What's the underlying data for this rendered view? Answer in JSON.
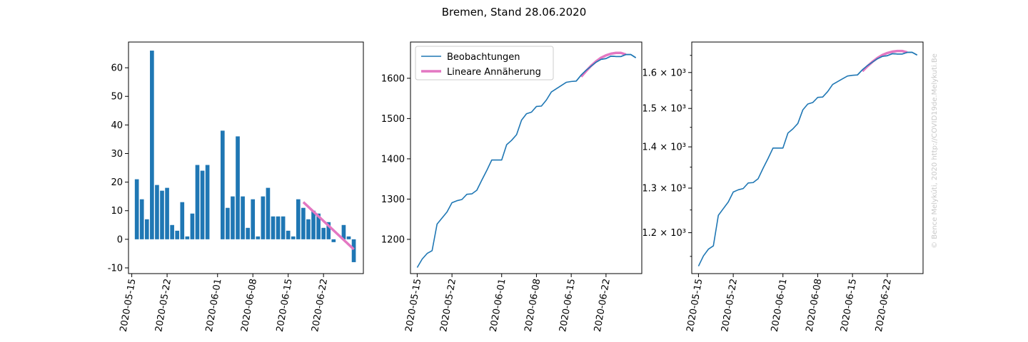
{
  "figure": {
    "title": "Bremen, Stand 28.06.2020",
    "watermark": "© Bence Melykúti, 2020  http://COVID19de.Melykuti.Be"
  },
  "colors": {
    "observed": "#1f77b4",
    "fit": "#e377c2"
  },
  "chart_data": [
    {
      "type": "bar",
      "title": "",
      "xlabel": "",
      "ylabel": "",
      "x_start": "2020-05-16",
      "x_end": "2020-06-28",
      "values": [
        21,
        14,
        7,
        66,
        19,
        17,
        18,
        5,
        3,
        13,
        1,
        9,
        26,
        24,
        26,
        0,
        0,
        38,
        11,
        15,
        36,
        15,
        4,
        14,
        1,
        15,
        18,
        8,
        8,
        8,
        3,
        1,
        14,
        11,
        7,
        10,
        9,
        4,
        6,
        -1,
        0,
        5,
        1,
        -8
      ],
      "ylim": [
        -12,
        69
      ],
      "yticks": [
        -10,
        0,
        10,
        20,
        30,
        40,
        50,
        60
      ],
      "xticks": [
        "2020-05-15",
        "2020-05-22",
        "2020-06-01",
        "2020-06-08",
        "2020-06-15",
        "2020-06-22"
      ],
      "fit": {
        "x": [
          "2020-06-18",
          "2020-06-28"
        ],
        "y": [
          13.0,
          -3.5
        ]
      }
    },
    {
      "type": "line",
      "title": "",
      "xlabel": "",
      "ylabel": "",
      "series": [
        {
          "name": "Beobachtungen",
          "x_start": "2020-05-15",
          "values": [
            1130,
            1151,
            1165,
            1172,
            1238,
            1253,
            1268,
            1291,
            1296,
            1299,
            1312,
            1313,
            1322,
            1347,
            1371,
            1397,
            1397,
            1397,
            1435,
            1446,
            1460,
            1496,
            1512,
            1516,
            1530,
            1531,
            1546,
            1566,
            1574,
            1582,
            1590,
            1592,
            1593,
            1608,
            1620,
            1630,
            1640,
            1647,
            1649,
            1655,
            1654,
            1654,
            1659,
            1659,
            1651
          ]
        },
        {
          "name": "Lineare Annäherung",
          "x_start": "2020-06-17",
          "values": [
            1604,
            1618,
            1631,
            1642,
            1651,
            1657,
            1661,
            1663,
            1663,
            1659
          ]
        }
      ],
      "ylim": [
        1115,
        1690
      ],
      "yticks": [
        1200,
        1300,
        1400,
        1500,
        1600
      ],
      "xticks": [
        "2020-05-15",
        "2020-05-22",
        "2020-06-01",
        "2020-06-08",
        "2020-06-15",
        "2020-06-22"
      ],
      "legend": "top-left"
    },
    {
      "type": "line",
      "title": "",
      "xlabel": "",
      "ylabel": "",
      "scale": "log",
      "series_ref": "same as chart 2",
      "ylim": [
        1115,
        1690
      ],
      "yticks": [
        "1.2 × 10³",
        "1.3 × 10³",
        "1.4 × 10³",
        "1.5 × 10³",
        "1.6 × 10³"
      ],
      "ytick_values": [
        1200,
        1300,
        1400,
        1500,
        1600
      ],
      "xticks": [
        "2020-05-15",
        "2020-05-22",
        "2020-06-01",
        "2020-06-08",
        "2020-06-15",
        "2020-06-22"
      ]
    }
  ]
}
